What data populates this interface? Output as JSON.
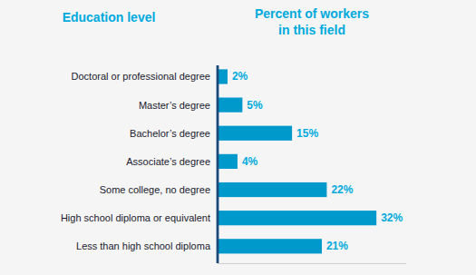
{
  "chart_data": {
    "type": "bar",
    "orientation": "horizontal",
    "ylabel": "Education level",
    "xlabel": "Percent of workers\nin this field",
    "categories": [
      "Less than high school diploma",
      "High school diploma or equivalent",
      "Some college, no degree",
      "Associate’s degree",
      "Bachelor’s degree",
      "Master’s degree",
      "Doctoral or professional degree"
    ],
    "values": [
      21,
      32,
      22,
      4,
      15,
      5,
      2
    ],
    "value_labels": [
      "21%",
      "32%",
      "22%",
      "4%",
      "15%",
      "5%",
      "2%"
    ],
    "data_labels": true,
    "color": "#0099CC",
    "xlim": [
      0,
      38
    ],
    "grid": false,
    "tick_labels": "y"
  }
}
